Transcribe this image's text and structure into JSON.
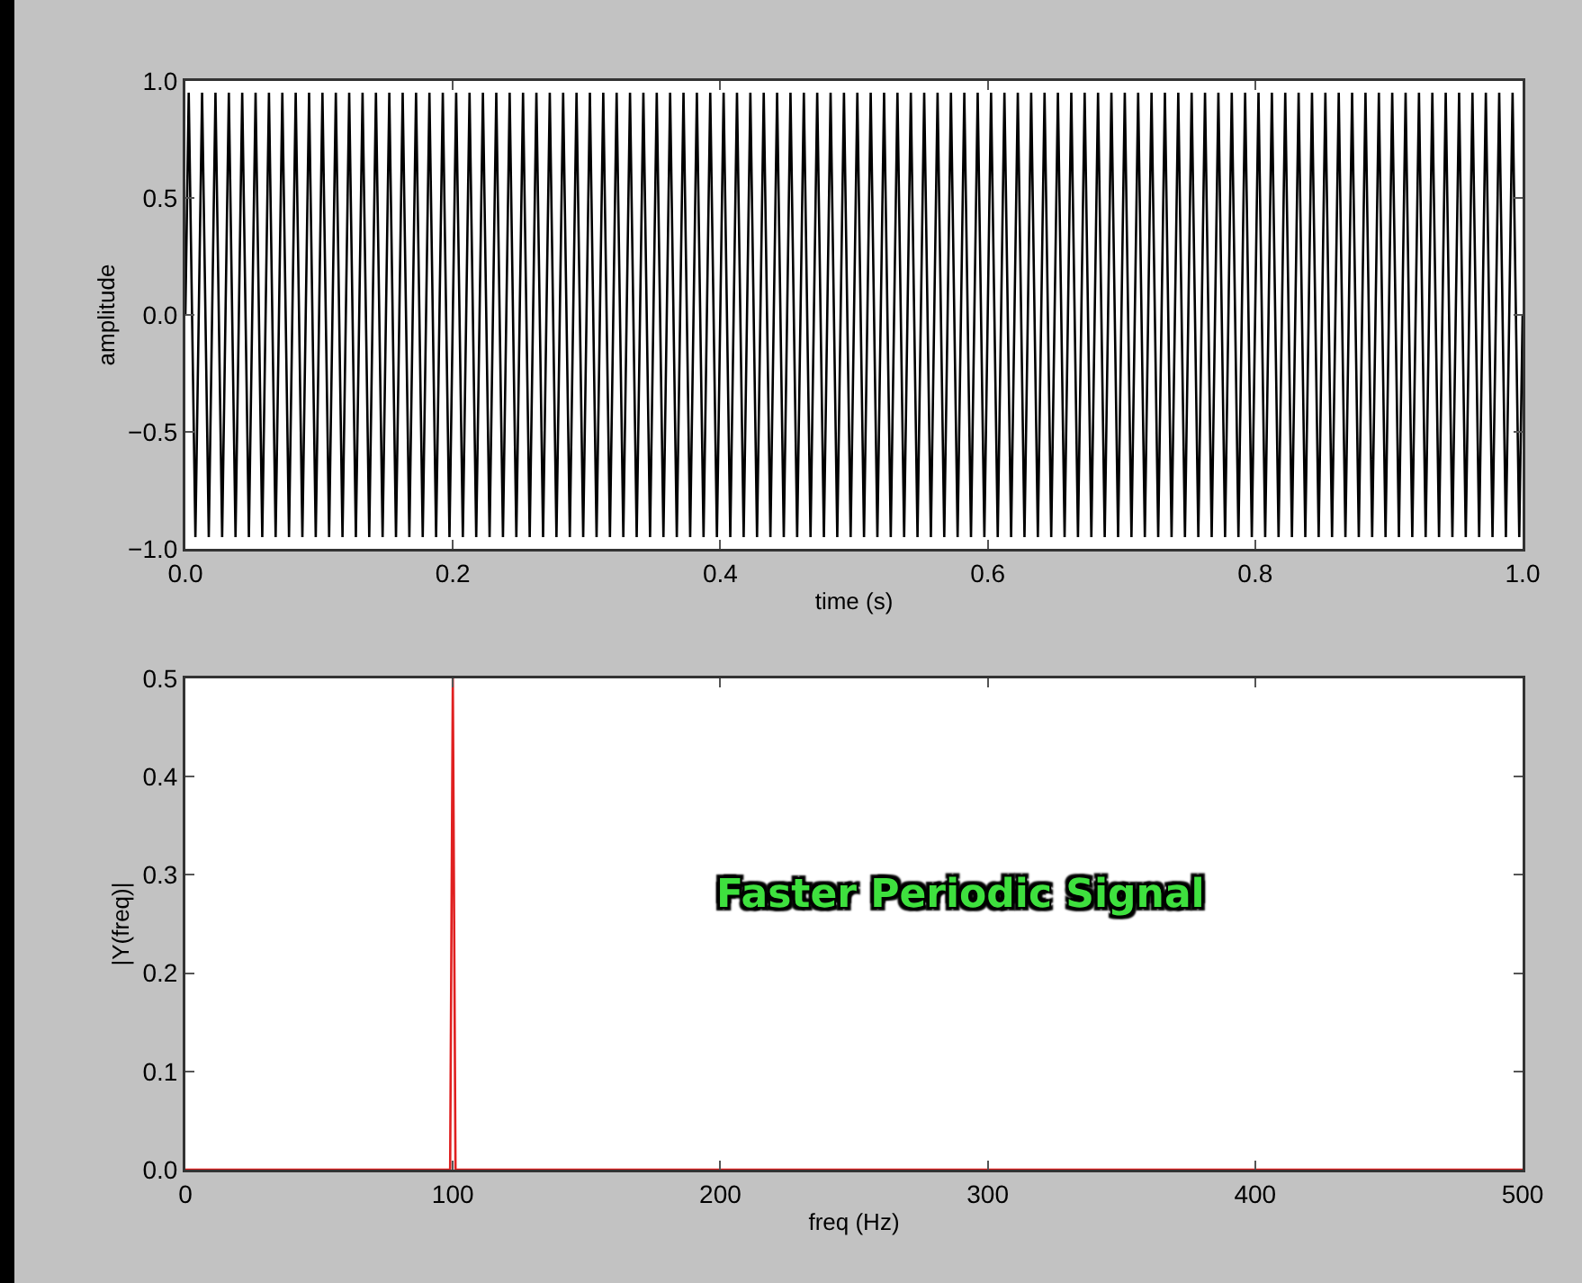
{
  "chart_data": [
    {
      "type": "line",
      "xlabel": "time (s)",
      "ylabel": "amplitude",
      "xlim": [
        0,
        1
      ],
      "ylim": [
        -1,
        1
      ],
      "xticks": [
        {
          "value": 0,
          "label": "0.0"
        },
        {
          "value": 0.2,
          "label": "0.2"
        },
        {
          "value": 0.4,
          "label": "0.4"
        },
        {
          "value": 0.6,
          "label": "0.6"
        },
        {
          "value": 0.8,
          "label": "0.8"
        },
        {
          "value": 1,
          "label": "1.0"
        }
      ],
      "yticks": [
        {
          "value": -1,
          "label": "−1.0"
        },
        {
          "value": -0.5,
          "label": "−0.5"
        },
        {
          "value": 0,
          "label": "0.0"
        },
        {
          "value": 0.5,
          "label": "0.5"
        },
        {
          "value": 1,
          "label": "1.0"
        }
      ],
      "grid": false,
      "x": [
        0,
        0.0025,
        0.0075,
        0.0125,
        0.0175,
        0.0225,
        0.0275,
        0.0325,
        0.0375,
        0.0425,
        0.0475,
        0.0525,
        0.0575,
        0.0625,
        0.0675,
        0.0725,
        0.0775,
        0.0825,
        0.0875,
        0.0925,
        0.0975,
        0.1025,
        0.1075,
        0.1125,
        0.1175,
        0.1225,
        0.1275,
        0.1325,
        0.1375,
        0.1425,
        0.1475,
        0.1525,
        0.1575,
        0.1625,
        0.1675,
        0.1725,
        0.1775,
        0.1825,
        0.1875,
        0.1925,
        0.1975,
        0.2025,
        0.2075,
        0.2125,
        0.2175,
        0.2225,
        0.2275,
        0.2325,
        0.2375,
        0.2425,
        0.2475,
        0.2525,
        0.2575,
        0.2625,
        0.2675,
        0.2725,
        0.2775,
        0.2825,
        0.2875,
        0.2925,
        0.2975,
        0.3025,
        0.3075,
        0.3125,
        0.3175,
        0.3225,
        0.3275,
        0.3325,
        0.3375,
        0.3425,
        0.3475,
        0.3525,
        0.3575,
        0.3625,
        0.3675,
        0.3725,
        0.3775,
        0.3825,
        0.3875,
        0.3925,
        0.3975,
        0.4025,
        0.4075,
        0.4125,
        0.4175,
        0.4225,
        0.4275,
        0.4325,
        0.4375,
        0.4425,
        0.4475,
        0.4525,
        0.4575,
        0.4625,
        0.4675,
        0.4725,
        0.4775,
        0.4825,
        0.4875,
        0.4925,
        0.4975,
        0.5025,
        0.5075,
        0.5125,
        0.5175,
        0.5225,
        0.5275,
        0.5325,
        0.5375,
        0.5425,
        0.5475,
        0.5525,
        0.5575,
        0.5625,
        0.5675,
        0.5725,
        0.5775,
        0.5825,
        0.5875,
        0.5925,
        0.5975,
        0.6025,
        0.6075,
        0.6125,
        0.6175,
        0.6225,
        0.6275,
        0.6325,
        0.6375,
        0.6425,
        0.6475,
        0.6525,
        0.6575,
        0.6625,
        0.6675,
        0.6725,
        0.6775,
        0.6825,
        0.6875,
        0.6925,
        0.6975,
        0.7025,
        0.7075,
        0.7125,
        0.7175,
        0.7225,
        0.7275,
        0.7325,
        0.7375,
        0.7425,
        0.7475,
        0.7525,
        0.7575,
        0.7625,
        0.7675,
        0.7725,
        0.7775,
        0.7825,
        0.7875,
        0.7925,
        0.7975,
        0.8025,
        0.8075,
        0.8125,
        0.8175,
        0.8225,
        0.8275,
        0.8325,
        0.8375,
        0.8425,
        0.8475,
        0.8525,
        0.8575,
        0.8625,
        0.8675,
        0.8725,
        0.8775,
        0.8825,
        0.8875,
        0.8925,
        0.8975,
        0.9025,
        0.9075,
        0.9125,
        0.9175,
        0.9225,
        0.9275,
        0.9325,
        0.9375,
        0.9425,
        0.9475,
        0.9525,
        0.9575,
        0.9625,
        0.9675,
        0.9725,
        0.9775,
        0.9825,
        0.9875,
        0.9925,
        0.9975,
        1
      ],
      "series": [
        {
          "color": "#000000",
          "values": [
            0,
            0.95,
            -0.95,
            0.95,
            -0.95,
            0.95,
            -0.95,
            0.95,
            -0.95,
            0.95,
            -0.95,
            0.95,
            -0.95,
            0.95,
            -0.95,
            0.95,
            -0.95,
            0.95,
            -0.95,
            0.95,
            -0.95,
            0.95,
            -0.95,
            0.95,
            -0.95,
            0.95,
            -0.95,
            0.95,
            -0.95,
            0.95,
            -0.95,
            0.95,
            -0.95,
            0.95,
            -0.95,
            0.95,
            -0.95,
            0.95,
            -0.95,
            0.95,
            -0.95,
            0.95,
            -0.95,
            0.95,
            -0.95,
            0.95,
            -0.95,
            0.95,
            -0.95,
            0.95,
            -0.95,
            0.95,
            -0.95,
            0.95,
            -0.95,
            0.95,
            -0.95,
            0.95,
            -0.95,
            0.95,
            -0.95,
            0.95,
            -0.95,
            0.95,
            -0.95,
            0.95,
            -0.95,
            0.95,
            -0.95,
            0.95,
            -0.95,
            0.95,
            -0.95,
            0.95,
            -0.95,
            0.95,
            -0.95,
            0.95,
            -0.95,
            0.95,
            -0.95,
            0.95,
            -0.95,
            0.95,
            -0.95,
            0.95,
            -0.95,
            0.95,
            -0.95,
            0.95,
            -0.95,
            0.95,
            -0.95,
            0.95,
            -0.95,
            0.95,
            -0.95,
            0.95,
            -0.95,
            0.95,
            -0.95,
            0.95,
            -0.95,
            0.95,
            -0.95,
            0.95,
            -0.95,
            0.95,
            -0.95,
            0.95,
            -0.95,
            0.95,
            -0.95,
            0.95,
            -0.95,
            0.95,
            -0.95,
            0.95,
            -0.95,
            0.95,
            -0.95,
            0.95,
            -0.95,
            0.95,
            -0.95,
            0.95,
            -0.95,
            0.95,
            -0.95,
            0.95,
            -0.95,
            0.95,
            -0.95,
            0.95,
            -0.95,
            0.95,
            -0.95,
            0.95,
            -0.95,
            0.95,
            -0.95,
            0.95,
            -0.95,
            0.95,
            -0.95,
            0.95,
            -0.95,
            0.95,
            -0.95,
            0.95,
            -0.95,
            0.95,
            -0.95,
            0.95,
            -0.95,
            0.95,
            -0.95,
            0.95,
            -0.95,
            0.95,
            -0.95,
            0.95,
            -0.95,
            0.95,
            -0.95,
            0.95,
            -0.95,
            0.95,
            -0.95,
            0.95,
            -0.95,
            0.95,
            -0.95,
            0.95,
            -0.95,
            0.95,
            -0.95,
            0.95,
            -0.95,
            0.95,
            -0.95,
            0.95,
            -0.95,
            0.95,
            -0.95,
            0.95,
            -0.95,
            0.95,
            -0.95,
            0.95,
            -0.95,
            0.95,
            -0.95,
            0.95,
            -0.95,
            0.95,
            -0.95,
            0.95,
            -0.95,
            0.95,
            -0.95,
            0
          ]
        }
      ]
    },
    {
      "type": "line",
      "xlabel": "freq (Hz)",
      "ylabel": "|Y(freq)|",
      "xlim": [
        0,
        500
      ],
      "ylim": [
        0,
        0.5
      ],
      "xticks": [
        0,
        100,
        200,
        300,
        400,
        500
      ],
      "yticks": [
        {
          "value": 0,
          "label": "0.0"
        },
        {
          "value": 0.1,
          "label": "0.1"
        },
        {
          "value": 0.2,
          "label": "0.2"
        },
        {
          "value": 0.3,
          "label": "0.3"
        },
        {
          "value": 0.4,
          "label": "0.4"
        },
        {
          "value": 0.5,
          "label": "0.5"
        }
      ],
      "grid": false,
      "annotations": [
        "Faster Periodic Signal"
      ],
      "x": [
        0,
        99,
        100,
        101,
        500
      ],
      "series": [
        {
          "color": "#e02020",
          "values": [
            0,
            0,
            0.5,
            0,
            0
          ]
        }
      ]
    }
  ]
}
